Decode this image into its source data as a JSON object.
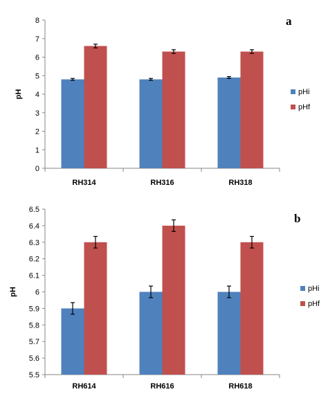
{
  "colors": {
    "pHi": "#4f81bd",
    "pHf": "#c0504d"
  },
  "chart_data": [
    {
      "type": "bar",
      "panel_label": "a",
      "ylabel": "pH",
      "xlabel": "",
      "ylim": [
        0,
        8
      ],
      "yticks": [
        "0",
        "1",
        "2",
        "3",
        "4",
        "5",
        "6",
        "7",
        "8"
      ],
      "categories": [
        "RH314",
        "RH316",
        "RH318"
      ],
      "series": [
        {
          "name": "pHi",
          "values": [
            4.8,
            4.8,
            4.9
          ],
          "errors": [
            0.05,
            0.05,
            0.05
          ]
        },
        {
          "name": "pHf",
          "values": [
            6.6,
            6.3,
            6.3
          ],
          "errors": [
            0.1,
            0.1,
            0.1
          ]
        }
      ],
      "legend_position": "right",
      "grid": false
    },
    {
      "type": "bar",
      "panel_label": "b",
      "ylabel": "pH",
      "xlabel": "",
      "ylim": [
        5.5,
        6.5
      ],
      "yticks": [
        "5.5",
        "5.6",
        "5.7",
        "5.8",
        "5.9",
        "6",
        "6.1",
        "6.2",
        "6.3",
        "6.4",
        "6.5"
      ],
      "categories": [
        "RH614",
        "RH616",
        "RH618"
      ],
      "series": [
        {
          "name": "pHi",
          "values": [
            5.9,
            6.0,
            6.0
          ],
          "errors": [
            0.035,
            0.035,
            0.035
          ]
        },
        {
          "name": "pHf",
          "values": [
            6.3,
            6.4,
            6.3
          ],
          "errors": [
            0.035,
            0.035,
            0.035
          ]
        }
      ],
      "legend_position": "right",
      "grid": false
    }
  ]
}
